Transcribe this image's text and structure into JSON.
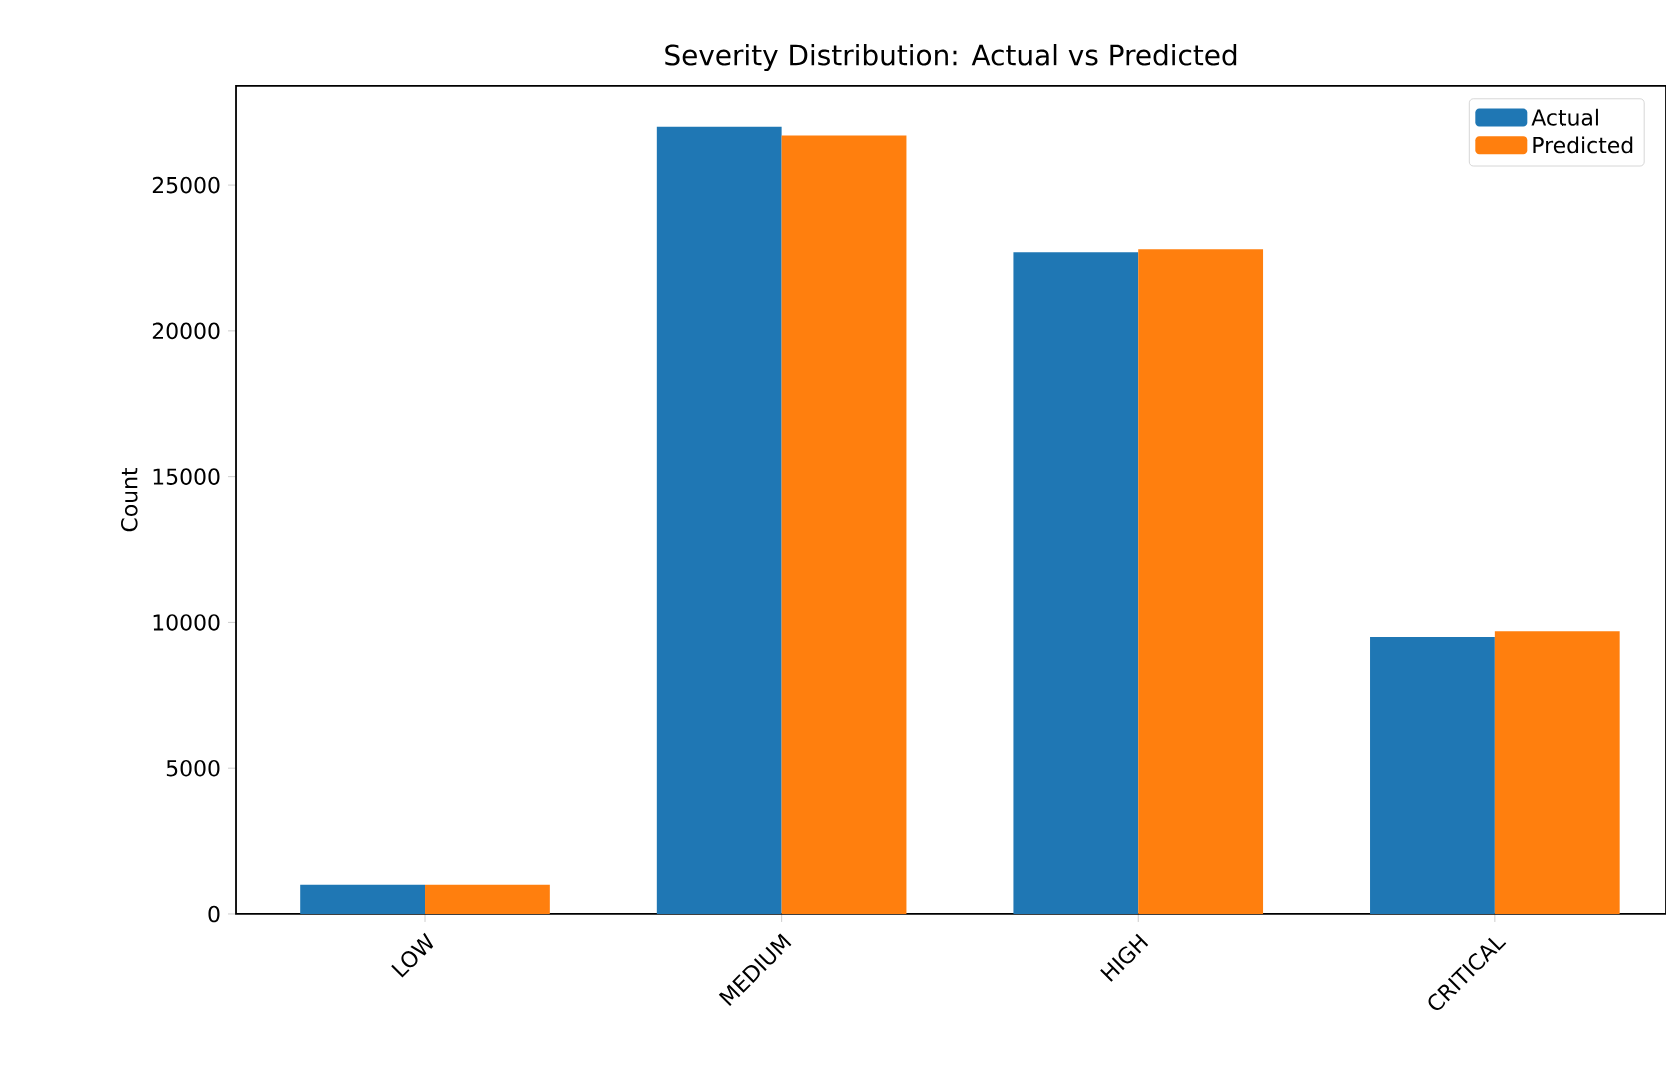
{
  "chart_data": {
    "type": "bar",
    "title": "Severity Distribution: Actual vs Predicted",
    "ylabel": "Count",
    "categories": [
      "LOW",
      "MEDIUM",
      "HIGH",
      "CRITICAL"
    ],
    "series": [
      {
        "name": "Actual",
        "color": "#1f77b4",
        "values": [
          1000,
          27000,
          22700,
          9500
        ]
      },
      {
        "name": "Predicted",
        "color": "#ff7f0e",
        "values": [
          1000,
          26700,
          22800,
          9700
        ]
      }
    ],
    "ylim": [
      0,
      28400
    ],
    "yticks": [
      0,
      5000,
      10000,
      15000,
      20000,
      25000
    ],
    "grid": false,
    "legend": "top right"
  }
}
